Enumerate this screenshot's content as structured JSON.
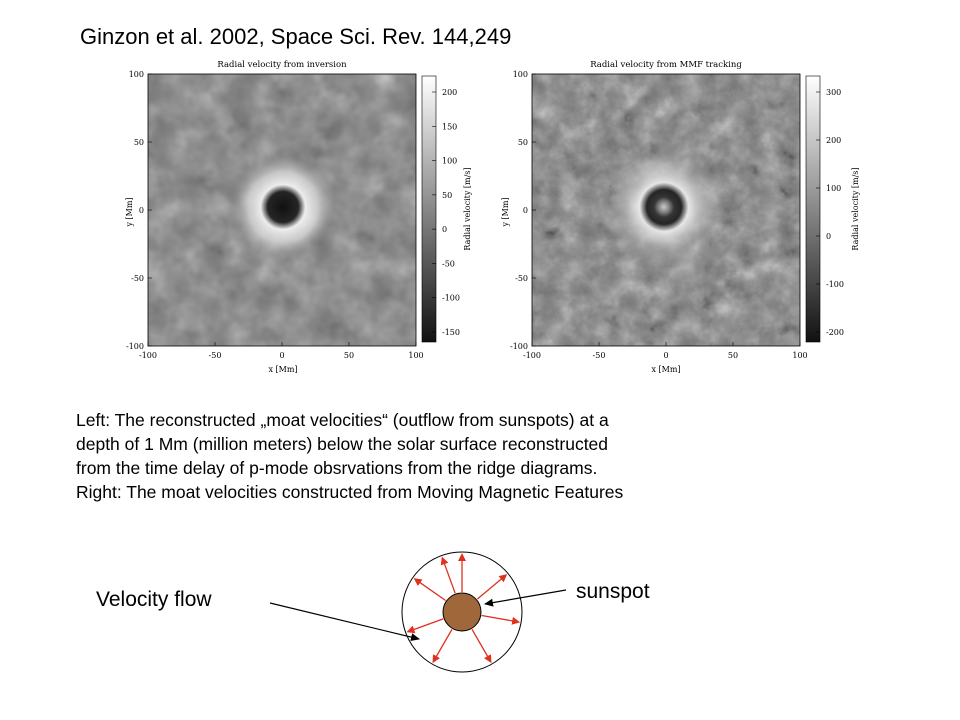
{
  "title": "Ginzon et al. 2002, Space Sci. Rev. 144,249",
  "panels": [
    {
      "heading": "Radial velocity from inversion",
      "y_label": "y [Mm]",
      "x_label": "x [Mm]",
      "axis_ticks": [
        "-100",
        "-50",
        "0",
        "50",
        "100"
      ],
      "colorbar_label": "Radial velocity [m/s]",
      "colorbar_ticks": [
        "200",
        "150",
        "100",
        "50",
        "0",
        "-50",
        "-100",
        "-150"
      ]
    },
    {
      "heading": "Radial velocity from MMF tracking",
      "y_label": "y [Mm]",
      "x_label": "x [Mm]",
      "axis_ticks": [
        "-100",
        "-50",
        "0",
        "50",
        "100"
      ],
      "colorbar_label": "Radial velocity [m/s]",
      "colorbar_ticks": [
        "300",
        "200",
        "100",
        "0",
        "-100",
        "-200"
      ]
    }
  ],
  "caption": [
    "Left: The reconstructed „moat velocities“ (outflow from sunspots) at a",
    "depth of 1 Mm (million meters) below the solar surface reconstructed",
    "from the time delay of p-mode obsrvations from the ridge diagrams.",
    "Right: The moat velocities constructed from Moving Magnetic Features"
  ],
  "diagram": {
    "velocity_label": "Velocity flow",
    "sunspot_label": "sunspot",
    "sunspot_color": "#a0683a",
    "arrow_color": "#e0301e"
  }
}
